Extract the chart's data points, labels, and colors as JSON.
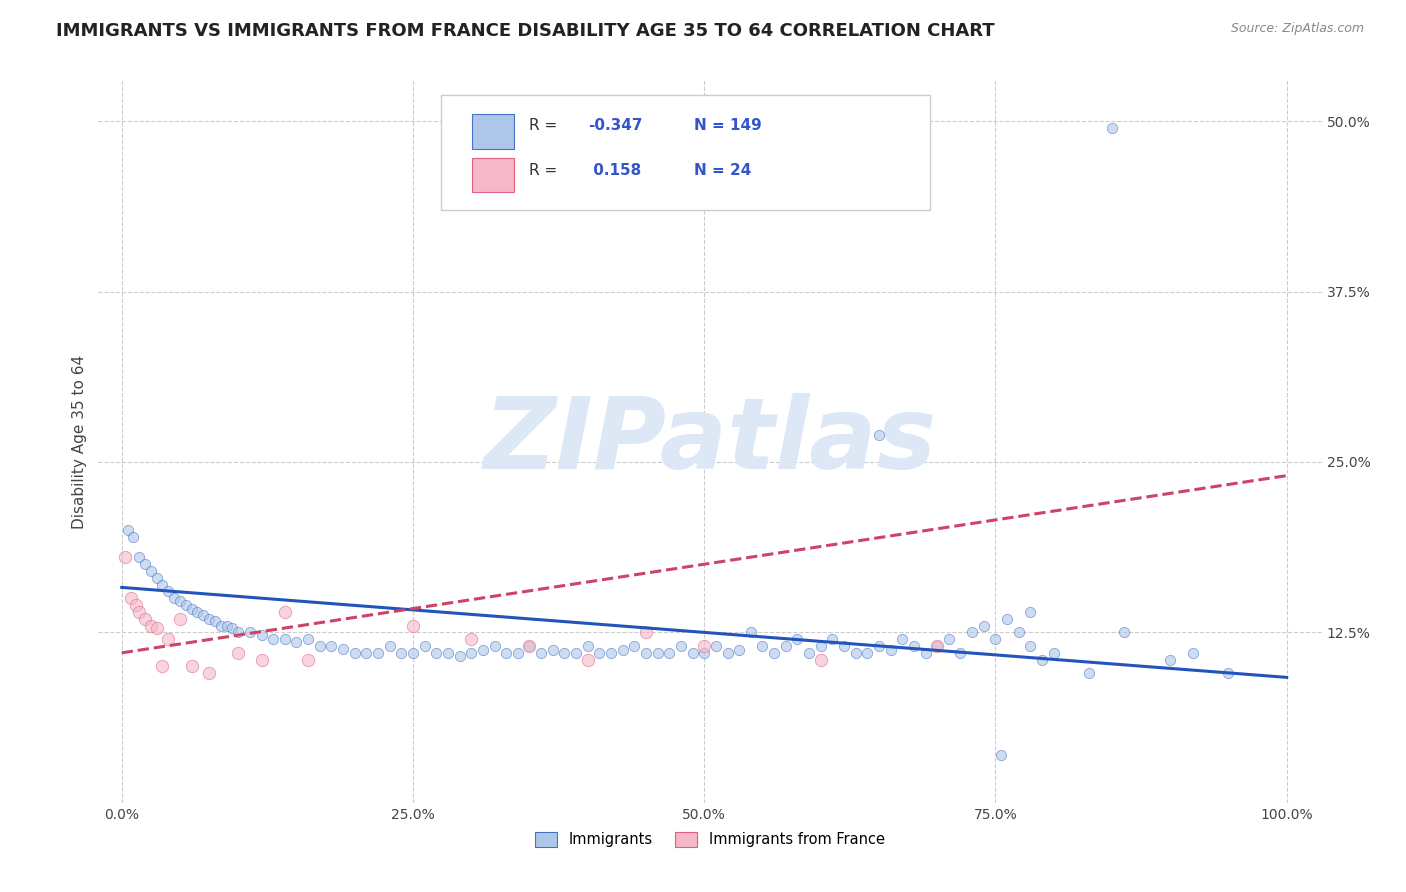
{
  "title": "IMMIGRANTS VS IMMIGRANTS FROM FRANCE DISABILITY AGE 35 TO 64 CORRELATION CHART",
  "source_text": "Source: ZipAtlas.com",
  "ylabel": "Disability Age 35 to 64",
  "watermark": "ZIPatlas",
  "blue_R": -0.347,
  "blue_N": 149,
  "pink_R": 0.158,
  "pink_N": 24,
  "legend_labels": [
    "Immigrants",
    "Immigrants from France"
  ],
  "blue_color": "#aec6e8",
  "pink_color": "#f4b8c8",
  "blue_edge_color": "#4472c4",
  "pink_edge_color": "#e06080",
  "blue_line_color": "#2255bb",
  "pink_line_color": "#cc4466",
  "blue_scatter_x": [
    0.5,
    1.0,
    1.5,
    2.0,
    2.5,
    3.0,
    3.5,
    4.0,
    4.5,
    5.0,
    5.5,
    6.0,
    6.5,
    7.0,
    7.5,
    8.0,
    8.5,
    9.0,
    9.5,
    10.0,
    11.0,
    12.0,
    13.0,
    14.0,
    15.0,
    16.0,
    17.0,
    18.0,
    19.0,
    20.0,
    21.0,
    22.0,
    23.0,
    24.0,
    25.0,
    26.0,
    27.0,
    28.0,
    29.0,
    30.0,
    31.0,
    32.0,
    33.0,
    34.0,
    35.0,
    36.0,
    37.0,
    38.0,
    39.0,
    40.0,
    41.0,
    42.0,
    43.0,
    44.0,
    45.0,
    46.0,
    47.0,
    48.0,
    49.0,
    50.0,
    51.0,
    52.0,
    53.0,
    54.0,
    55.0,
    56.0,
    57.0,
    58.0,
    59.0,
    60.0,
    61.0,
    62.0,
    63.0,
    64.0,
    65.0,
    66.0,
    67.0,
    68.0,
    69.0,
    70.0,
    71.0,
    72.0,
    73.0,
    74.0,
    75.0,
    76.0,
    77.0,
    78.0,
    79.0,
    80.0,
    83.0,
    85.0,
    86.0,
    90.0,
    92.0,
    95.0,
    65.0,
    75.5,
    78.0
  ],
  "blue_scatter_y": [
    20.0,
    19.5,
    18.0,
    17.5,
    17.0,
    16.5,
    16.0,
    15.5,
    15.0,
    14.8,
    14.5,
    14.2,
    14.0,
    13.8,
    13.5,
    13.3,
    13.0,
    13.0,
    12.8,
    12.5,
    12.5,
    12.3,
    12.0,
    12.0,
    11.8,
    12.0,
    11.5,
    11.5,
    11.3,
    11.0,
    11.0,
    11.0,
    11.5,
    11.0,
    11.0,
    11.5,
    11.0,
    11.0,
    10.8,
    11.0,
    11.2,
    11.5,
    11.0,
    11.0,
    11.5,
    11.0,
    11.2,
    11.0,
    11.0,
    11.5,
    11.0,
    11.0,
    11.2,
    11.5,
    11.0,
    11.0,
    11.0,
    11.5,
    11.0,
    11.0,
    11.5,
    11.0,
    11.2,
    12.5,
    11.5,
    11.0,
    11.5,
    12.0,
    11.0,
    11.5,
    12.0,
    11.5,
    11.0,
    11.0,
    11.5,
    11.2,
    12.0,
    11.5,
    11.0,
    11.5,
    12.0,
    11.0,
    12.5,
    13.0,
    12.0,
    13.5,
    12.5,
    11.5,
    10.5,
    11.0,
    9.5,
    49.5,
    12.5,
    10.5,
    11.0,
    9.5,
    27.0,
    3.5,
    14.0
  ],
  "pink_scatter_x": [
    0.3,
    0.8,
    1.2,
    1.5,
    2.0,
    2.5,
    3.0,
    3.5,
    4.0,
    5.0,
    6.0,
    7.5,
    10.0,
    12.0,
    14.0,
    16.0,
    25.0,
    30.0,
    35.0,
    40.0,
    45.0,
    50.0,
    60.0,
    70.0
  ],
  "pink_scatter_y": [
    18.0,
    15.0,
    14.5,
    14.0,
    13.5,
    13.0,
    12.8,
    10.0,
    12.0,
    13.5,
    10.0,
    9.5,
    11.0,
    10.5,
    14.0,
    10.5,
    13.0,
    12.0,
    11.5,
    10.5,
    12.5,
    11.5,
    10.5,
    11.5
  ],
  "blue_trend_x": [
    0.0,
    100.0
  ],
  "blue_trend_y": [
    15.8,
    9.2
  ],
  "pink_trend_x": [
    0.0,
    100.0
  ],
  "pink_trend_y": [
    11.0,
    24.0
  ],
  "xlim": [
    -2.0,
    103.0
  ],
  "ylim": [
    0.0,
    53.0
  ],
  "xticks": [
    0.0,
    25.0,
    50.0,
    75.0,
    100.0
  ],
  "xticklabels": [
    "0.0%",
    "25.0%",
    "50.0%",
    "75.0%",
    "100.0%"
  ],
  "yticks": [
    0.0,
    12.5,
    25.0,
    37.5,
    50.0
  ],
  "yticklabels": [
    "",
    "12.5%",
    "25.0%",
    "37.5%",
    "50.0%"
  ],
  "background_color": "#ffffff",
  "grid_color": "#cccccc",
  "title_color": "#222222",
  "watermark_color": "#dce8f5",
  "watermark_fontsize": 72,
  "title_fontsize": 13,
  "axis_label_fontsize": 11,
  "tick_fontsize": 10,
  "scatter_size_blue": 55,
  "scatter_size_pink": 80,
  "scatter_alpha": 0.6,
  "line_width": 2.2
}
